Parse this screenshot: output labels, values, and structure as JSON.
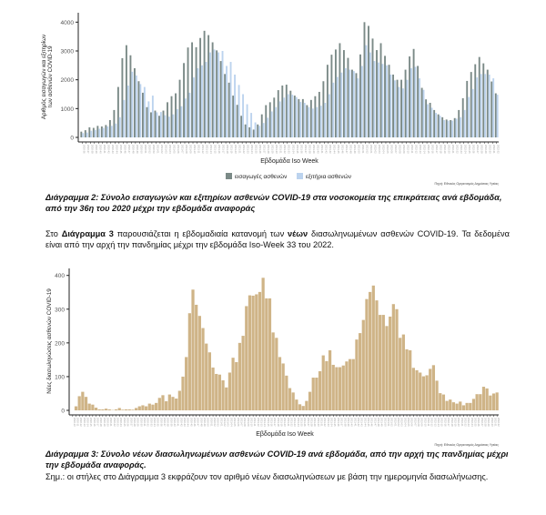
{
  "chart_data": [
    {
      "type": "bar",
      "ylabel": "Αριθμός εισαγωγών και εξιτηρίων των ασθενών COVID-19",
      "xlabel": "Εβδομάδα Iso Week",
      "ylim": [
        0,
        4200
      ],
      "yticks": [
        0,
        1000,
        2000,
        3000,
        4000
      ],
      "start_week": "2020-36",
      "legend_position": "bottom",
      "source": "Πηγή: Εθνικός Οργανισμός Δημόσιας Υγείας",
      "grid": false,
      "series": [
        {
          "name": "εισαγωγές ασθενών",
          "color": "#7b8a87",
          "values": [
            200,
            250,
            350,
            330,
            400,
            380,
            430,
            600,
            950,
            1750,
            2750,
            3200,
            2850,
            2400,
            1950,
            1550,
            1050,
            870,
            930,
            750,
            930,
            1220,
            1430,
            1530,
            2000,
            2580,
            3120,
            3300,
            3130,
            3450,
            3700,
            3550,
            3300,
            3020,
            2650,
            2200,
            1900,
            1450,
            1130,
            750,
            450,
            350,
            270,
            450,
            800,
            1120,
            1220,
            1380,
            1640,
            1800,
            1830,
            1620,
            1450,
            1330,
            1330,
            1120,
            1300,
            1430,
            1580,
            1950,
            2520,
            2870,
            3050,
            3270,
            3030,
            2760,
            2350,
            2230,
            2880,
            4000,
            3870,
            3430,
            3030,
            3270,
            2830,
            2520,
            2180,
            2000,
            2000,
            2350,
            2810,
            3070,
            2480,
            1720,
            1320,
            1200,
            950,
            800,
            700,
            620,
            600,
            670,
            950,
            1360,
            1960,
            2270,
            2540,
            2790,
            2570,
            2350,
            1940,
            1530
          ]
        },
        {
          "name": "εξιτήρια ασθενών",
          "color": "#bcd3ee",
          "values": [
            150,
            170,
            230,
            260,
            300,
            330,
            380,
            400,
            480,
            700,
            1300,
            1800,
            2280,
            2150,
            1850,
            1750,
            1250,
            1450,
            870,
            880,
            770,
            720,
            800,
            980,
            1080,
            1350,
            1550,
            2080,
            2400,
            2500,
            2620,
            2950,
            3050,
            2950,
            3000,
            2480,
            2620,
            2180,
            1820,
            1500,
            1150,
            850,
            520,
            400,
            500,
            680,
            900,
            1050,
            1250,
            1380,
            1500,
            1480,
            1400,
            1230,
            1200,
            1050,
            1000,
            1050,
            1100,
            1200,
            1500,
            1900,
            2100,
            2250,
            2400,
            2350,
            2300,
            2050,
            2480,
            3200,
            2950,
            2650,
            2600,
            2550,
            2500,
            2180,
            1980,
            1750,
            1700,
            2000,
            2400,
            2450,
            2050,
            1650,
            1150,
            1030,
            850,
            750,
            600,
            580,
            580,
            650,
            700,
            950,
            1400,
            1680,
            2080,
            2200,
            2200,
            2180,
            2050,
            1480
          ]
        }
      ]
    },
    {
      "type": "bar",
      "ylabel": "Νέες διασωληνώσεις ασθενών COVID-19",
      "xlabel": "Εβδομάδα Iso Week",
      "ylim": [
        0,
        410
      ],
      "yticks": [
        0,
        100,
        200,
        300,
        400
      ],
      "start_week": "2020-10",
      "grid": false,
      "source": "Πηγή: Εθνικός Οργανισμός Δημόσιας Υγείας",
      "series": [
        {
          "color": "#cfb487",
          "values": [
            0,
            12,
            42,
            55,
            40,
            20,
            17,
            8,
            3,
            3,
            5,
            3,
            1,
            3,
            7,
            2,
            3,
            3,
            2,
            7,
            12,
            15,
            12,
            20,
            17,
            22,
            37,
            45,
            27,
            47,
            40,
            35,
            58,
            100,
            158,
            288,
            358,
            313,
            280,
            244,
            198,
            172,
            127,
            108,
            106,
            89,
            68,
            112,
            156,
            143,
            200,
            221,
            309,
            341,
            340,
            344,
            351,
            393,
            332,
            332,
            231,
            215,
            158,
            139,
            103,
            66,
            53,
            32,
            18,
            13,
            28,
            55,
            97,
            97,
            116,
            163,
            146,
            178,
            135,
            128,
            128,
            133,
            145,
            152,
            152,
            210,
            229,
            268,
            330,
            351,
            370,
            326,
            283,
            283,
            250,
            278,
            315,
            300,
            215,
            225,
            181,
            178,
            126,
            119,
            112,
            101,
            104,
            123,
            134,
            88,
            51,
            47,
            28,
            32,
            24,
            20,
            26,
            15,
            22,
            22,
            34,
            48,
            48,
            70,
            65,
            44,
            50,
            53
          ]
        }
      ]
    }
  ],
  "caption2": "Διάγραμμα 2: Σύνολο εισαγωγών και εξιτηρίων ασθενών COVID-19 στα νοσοκομεία της επικράτειας ανά εβδομάδα, από την 36η του 2020 μέχρι την εβδομάδα αναφοράς",
  "paragraph": {
    "p1": "Στο ",
    "b1": "Διάγραμμα 3",
    "p2": " παρουσιάζεται η εβδομαδιαία κατανομή των ",
    "b2": "νέων",
    "p3": " διασωληνωμένων ασθενών COVID-19.  Τα δεδομένα είναι από την αρχή την πανδημίας μέχρι την εβδομάδα Iso-Week 33 του 2022."
  },
  "caption3": "Διάγραμμα 3: Σύνολο νέων διασωληνωμένων ασθενών COVID-19 ανά εβδομάδα, από την αρχή της πανδημίας μέχρι την εβδομάδα αναφοράς.",
  "note": "Σημ.:  οι στήλες στο Διάγραμμα 3 εκφράζουν τον αριθμό νέων διασωληνώσεων με βάση την ημερομηνία διασωλήνωσης."
}
